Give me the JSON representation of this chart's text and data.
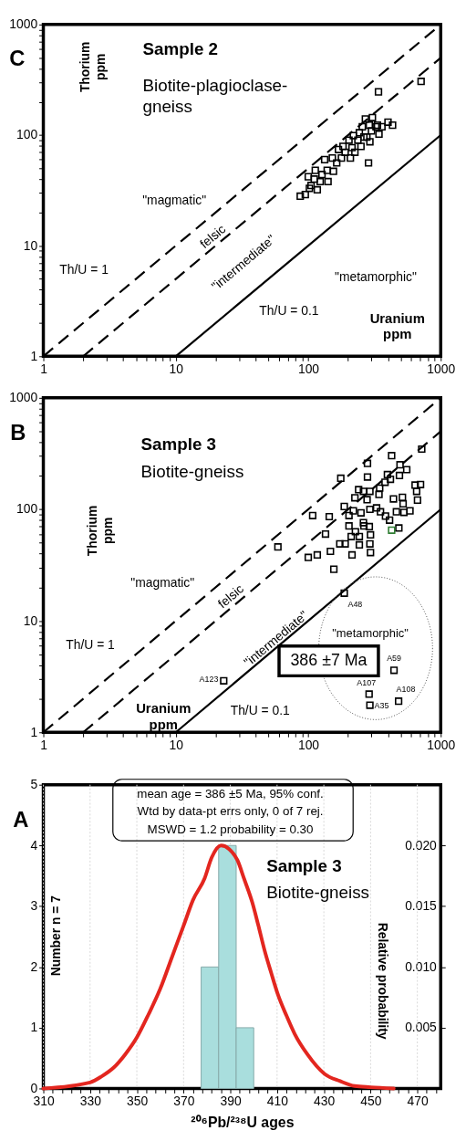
{
  "chart_data": [
    {
      "type": "scatter",
      "title": "Sample 2",
      "subtitle": "Biotite-plagioclase-gneiss",
      "xlabel": "Uranium ppm",
      "ylabel": "Thorium ppm",
      "log": "xy",
      "marker": "square",
      "xlim": [
        1,
        1000
      ],
      "ylim": [
        1,
        1000
      ],
      "xticks": [
        1,
        {
          "value": 2,
          "label": null
        },
        {
          "value": 3,
          "label": null
        },
        {
          "value": 4,
          "label": null
        },
        {
          "value": 5,
          "label": null
        },
        {
          "value": 6,
          "label": null
        },
        {
          "value": 7,
          "label": null
        },
        {
          "value": 8,
          "label": null
        },
        {
          "value": 9,
          "label": null
        },
        10,
        {
          "value": 20,
          "label": null
        },
        {
          "value": 30,
          "label": null
        },
        {
          "value": 40,
          "label": null
        },
        {
          "value": 50,
          "label": null
        },
        {
          "value": 60,
          "label": null
        },
        {
          "value": 70,
          "label": null
        },
        {
          "value": 80,
          "label": null
        },
        {
          "value": 90,
          "label": null
        },
        100,
        {
          "value": 200,
          "label": null
        },
        {
          "value": 300,
          "label": null
        },
        {
          "value": 400,
          "label": null
        },
        {
          "value": 500,
          "label": null
        },
        {
          "value": 600,
          "label": null
        },
        {
          "value": 700,
          "label": null
        },
        {
          "value": 800,
          "label": null
        },
        {
          "value": 900,
          "label": null
        },
        1000
      ],
      "yticks": [
        1,
        {
          "value": 2,
          "label": null
        },
        {
          "value": 3,
          "label": null
        },
        {
          "value": 4,
          "label": null
        },
        {
          "value": 5,
          "label": null
        },
        {
          "value": 6,
          "label": null
        },
        {
          "value": 7,
          "label": null
        },
        {
          "value": 8,
          "label": null
        },
        {
          "value": 9,
          "label": null
        },
        10,
        {
          "value": 20,
          "label": null
        },
        {
          "value": 30,
          "label": null
        },
        {
          "value": 40,
          "label": null
        },
        {
          "value": 50,
          "label": null
        },
        {
          "value": 60,
          "label": null
        },
        {
          "value": 70,
          "label": null
        },
        {
          "value": 80,
          "label": null
        },
        {
          "value": 90,
          "label": null
        },
        100,
        {
          "value": 200,
          "label": null
        },
        {
          "value": 300,
          "label": null
        },
        {
          "value": 400,
          "label": null
        },
        {
          "value": 500,
          "label": null
        },
        {
          "value": 600,
          "label": null
        },
        {
          "value": 700,
          "label": null
        },
        {
          "value": 800,
          "label": null
        },
        {
          "value": 900,
          "label": null
        },
        1000
      ],
      "series": [
        {
          "type": "scatter",
          "color": "#000000",
          "x": [
            711,
            339,
            285,
            87,
            95,
            102,
            100,
            113,
            105,
            117,
            123,
            127,
            139,
            141,
            155,
            133,
            152,
            164,
            169,
            178,
            183,
            190,
            203,
            208,
            214,
            219,
            225,
            237,
            243,
            256,
            263,
            270,
            289,
            292,
            305,
            300,
            325,
            342,
            333,
            360,
            400,
            433,
            277,
            250,
            111
          ],
          "values": [
            306,
            246,
            56,
            28,
            29,
            33,
            42,
            48,
            35,
            32,
            38,
            44,
            48,
            38,
            47,
            60,
            62,
            56,
            74,
            62,
            79,
            70,
            90,
            62,
            77,
            99,
            70,
            90,
            105,
            119,
            96,
            140,
            123,
            87,
            144,
            109,
            119,
            102,
            123,
            119,
            131,
            123,
            96,
            79,
            40
          ]
        },
        {
          "type": "line",
          "marker": "none",
          "line_style": "dashed",
          "color": "#000000",
          "x": [
            1,
            1000
          ],
          "values": [
            1,
            1000
          ]
        },
        {
          "type": "line",
          "marker": "none",
          "line_style": "dashed",
          "color": "#000000",
          "x": [
            2,
            1000
          ],
          "values": [
            1,
            500
          ]
        },
        {
          "type": "line",
          "marker": "none",
          "line_style": "solid",
          "color": "#000000",
          "x": [
            10,
            1000
          ],
          "values": [
            1,
            100
          ]
        }
      ],
      "annotations": [
        "C",
        "\"magmatic\"",
        "felsic",
        "\"intermediate\"",
        "\"metamorphic\"",
        "Th/U = 1",
        "Th/U = 0.1"
      ]
    },
    {
      "type": "scatter",
      "title": "Sample 3",
      "subtitle": "Biotite-gneiss",
      "xlabel": "Uranium ppm",
      "ylabel": "Thorium ppm",
      "log": "xy",
      "marker": "square",
      "xlim": [
        1,
        1000
      ],
      "ylim": [
        1,
        1000
      ],
      "xticks": [
        1,
        {
          "value": 2,
          "label": null
        },
        {
          "value": 3,
          "label": null
        },
        {
          "value": 4,
          "label": null
        },
        {
          "value": 5,
          "label": null
        },
        {
          "value": 6,
          "label": null
        },
        {
          "value": 7,
          "label": null
        },
        {
          "value": 8,
          "label": null
        },
        {
          "value": 9,
          "label": null
        },
        10,
        {
          "value": 20,
          "label": null
        },
        {
          "value": 30,
          "label": null
        },
        {
          "value": 40,
          "label": null
        },
        {
          "value": 50,
          "label": null
        },
        {
          "value": 60,
          "label": null
        },
        {
          "value": 70,
          "label": null
        },
        {
          "value": 80,
          "label": null
        },
        {
          "value": 90,
          "label": null
        },
        100,
        {
          "value": 200,
          "label": null
        },
        {
          "value": 300,
          "label": null
        },
        {
          "value": 400,
          "label": null
        },
        {
          "value": 500,
          "label": null
        },
        {
          "value": 600,
          "label": null
        },
        {
          "value": 700,
          "label": null
        },
        {
          "value": 800,
          "label": null
        },
        {
          "value": 900,
          "label": null
        },
        1000
      ],
      "yticks": [
        1,
        {
          "value": 2,
          "label": null
        },
        {
          "value": 3,
          "label": null
        },
        {
          "value": 4,
          "label": null
        },
        {
          "value": 5,
          "label": null
        },
        {
          "value": 6,
          "label": null
        },
        {
          "value": 7,
          "label": null
        },
        {
          "value": 8,
          "label": null
        },
        {
          "value": 9,
          "label": null
        },
        10,
        {
          "value": 20,
          "label": null
        },
        {
          "value": 30,
          "label": null
        },
        {
          "value": 40,
          "label": null
        },
        {
          "value": 50,
          "label": null
        },
        {
          "value": 60,
          "label": null
        },
        {
          "value": 70,
          "label": null
        },
        {
          "value": 80,
          "label": null
        },
        {
          "value": 90,
          "label": null
        },
        100,
        {
          "value": 200,
          "label": null
        },
        {
          "value": 300,
          "label": null
        },
        {
          "value": 400,
          "label": null
        },
        {
          "value": 500,
          "label": null
        },
        {
          "value": 600,
          "label": null
        },
        {
          "value": 700,
          "label": null
        },
        {
          "value": 800,
          "label": null
        },
        {
          "value": 900,
          "label": null
        },
        1000
      ],
      "series": [
        {
          "type": "scatter",
          "color": "#000000",
          "x": [
            719,
            426,
            493,
            554,
            488,
            280,
            280,
            176,
            396,
            417,
            380,
            346,
            342,
            240,
            261,
            292,
            225,
            278,
            187,
            219,
            203,
            250,
            292,
            328,
            351,
            383,
            411,
            440,
            463,
            514,
            520,
            528,
            586,
            641,
            704,
            658,
            668,
            108,
            144,
            59,
            135,
            100,
            117,
            147,
            156,
            173,
            190,
            203,
            211,
            214,
            227,
            243,
            243,
            261,
            263,
            289,
            295,
            292,
            295,
            483,
            187,
            23,
            444,
            288,
            481,
            292
          ],
          "values": [
            347,
            303,
            251,
            227,
            201,
            258,
            195,
            190,
            205,
            186,
            175,
            155,
            136,
            150,
            145,
            145,
            127,
            122,
            106,
            97,
            88,
            93,
            100,
            103,
            95,
            87,
            80,
            124,
            95,
            128,
            112,
            94,
            97,
            165,
            167,
            145,
            121,
            88,
            86,
            46,
            60,
            37,
            39,
            42,
            29,
            49,
            49,
            71,
            57,
            39,
            63,
            57,
            48,
            76,
            71,
            70,
            59,
            49,
            41,
            68,
            17.7,
            2.9,
            3.6,
            2.2,
            1.9,
            1.75
          ]
        },
        {
          "type": "scatter",
          "color": "#2e7d32",
          "x": [
            426
          ],
          "values": [
            65
          ]
        },
        {
          "type": "line",
          "marker": "none",
          "line_style": "dashed",
          "color": "#000000",
          "x": [
            1,
            1000
          ],
          "values": [
            1,
            1000
          ]
        },
        {
          "type": "line",
          "marker": "none",
          "line_style": "dashed",
          "color": "#000000",
          "x": [
            2,
            1000
          ],
          "values": [
            1,
            500
          ]
        },
        {
          "type": "line",
          "marker": "none",
          "line_style": "solid",
          "color": "#000000",
          "x": [
            10,
            1000
          ],
          "values": [
            1,
            100
          ]
        }
      ],
      "annotations": [
        "B",
        "\"magmatic\"",
        "felsic",
        "\"intermediate\"",
        "\"metamorphic\"",
        "Th/U = 1",
        "Th/U = 0.1",
        "386 ±7 Ma",
        {
          "text": "A48",
          "x": 187,
          "y": 17.7
        },
        {
          "text": "A123",
          "x": 23,
          "y": 2.9
        },
        {
          "text": "A59",
          "x": 444,
          "y": 3.6
        },
        {
          "text": "A107",
          "x": 288,
          "y": 2.2
        },
        {
          "text": "A108",
          "x": 481,
          "y": 1.9
        },
        {
          "text": "A35",
          "x": 292,
          "y": 1.75
        }
      ]
    },
    {
      "type": "histogram",
      "title": "Sample 3",
      "subtitle": "Biotite-gneiss",
      "xlabel": "²⁰⁶Pb/²³⁸U ages",
      "ylabel": "Number   n = 7",
      "y2label": "Relative probability",
      "grid": "x",
      "bins": [
        377.5,
        385,
        392.5,
        400
      ],
      "values": [
        2,
        4,
        1
      ],
      "color": "#a9dedd",
      "xlim": [
        310,
        480
      ],
      "xticks": [
        310,
        {
          "value": 314,
          "label": null
        },
        {
          "value": 318,
          "label": null
        },
        {
          "value": 322,
          "label": null
        },
        {
          "value": 326,
          "label": null
        },
        330,
        {
          "value": 334,
          "label": null
        },
        {
          "value": 338,
          "label": null
        },
        {
          "value": 342,
          "label": null
        },
        {
          "value": 346,
          "label": null
        },
        350,
        {
          "value": 354,
          "label": null
        },
        {
          "value": 358,
          "label": null
        },
        {
          "value": 362,
          "label": null
        },
        {
          "value": 366,
          "label": null
        },
        370,
        {
          "value": 374,
          "label": null
        },
        {
          "value": 378,
          "label": null
        },
        {
          "value": 382,
          "label": null
        },
        {
          "value": 386,
          "label": null
        },
        390,
        {
          "value": 394,
          "label": null
        },
        {
          "value": 398,
          "label": null
        },
        {
          "value": 402,
          "label": null
        },
        {
          "value": 406,
          "label": null
        },
        410,
        {
          "value": 414,
          "label": null
        },
        {
          "value": 418,
          "label": null
        },
        {
          "value": 422,
          "label": null
        },
        {
          "value": 426,
          "label": null
        },
        430,
        {
          "value": 434,
          "label": null
        },
        {
          "value": 438,
          "label": null
        },
        {
          "value": 442,
          "label": null
        },
        {
          "value": 446,
          "label": null
        },
        450,
        {
          "value": 454,
          "label": null
        },
        {
          "value": 458,
          "label": null
        },
        {
          "value": 462,
          "label": null
        },
        {
          "value": 466,
          "label": null
        },
        470,
        {
          "value": 474,
          "label": null
        },
        {
          "value": 478,
          "label": null
        }
      ],
      "ylim": [
        0,
        5
      ],
      "yticks": [
        0,
        1,
        2,
        3,
        4,
        5
      ],
      "y2lim": [
        0,
        0.025
      ],
      "y2ticks": [
        {
          "value": 0.005,
          "label": "0.005"
        },
        {
          "value": 0.01,
          "label": "0.010"
        },
        {
          "value": 0.015,
          "label": "0.015"
        },
        {
          "value": 0.02,
          "label": "0.020"
        }
      ],
      "series": [
        {
          "type": "line",
          "axis": "y2",
          "marker": "none",
          "color": "#e3261f",
          "x": [
            310,
            330,
            335,
            340,
            345,
            350,
            355,
            360,
            365,
            370,
            374,
            379,
            382,
            386,
            389.5,
            393,
            396,
            399.4,
            402,
            404.6,
            407.5,
            410.4,
            414,
            417.5,
            423,
            430.3,
            437,
            443.2,
            450,
            459.9
          ],
          "values": [
            0,
            0.0005,
            0.001,
            0.0017,
            0.0028,
            0.0042,
            0.0061,
            0.0082,
            0.0108,
            0.0134,
            0.0155,
            0.0173,
            0.019,
            0.02,
            0.0197,
            0.0188,
            0.0172,
            0.0153,
            0.0134,
            0.0114,
            0.0095,
            0.0077,
            0.006,
            0.0045,
            0.0028,
            0.0012,
            0.0006,
            0.0002,
            0.0001,
            0
          ]
        }
      ],
      "annotations": [
        "A",
        "mean age = 386 ±5 Ma, 95% conf.",
        "Wtd by data-pt errs only, 0 of 7 rej.",
        "MSWD = 1.2  probability = 0.30"
      ]
    }
  ]
}
